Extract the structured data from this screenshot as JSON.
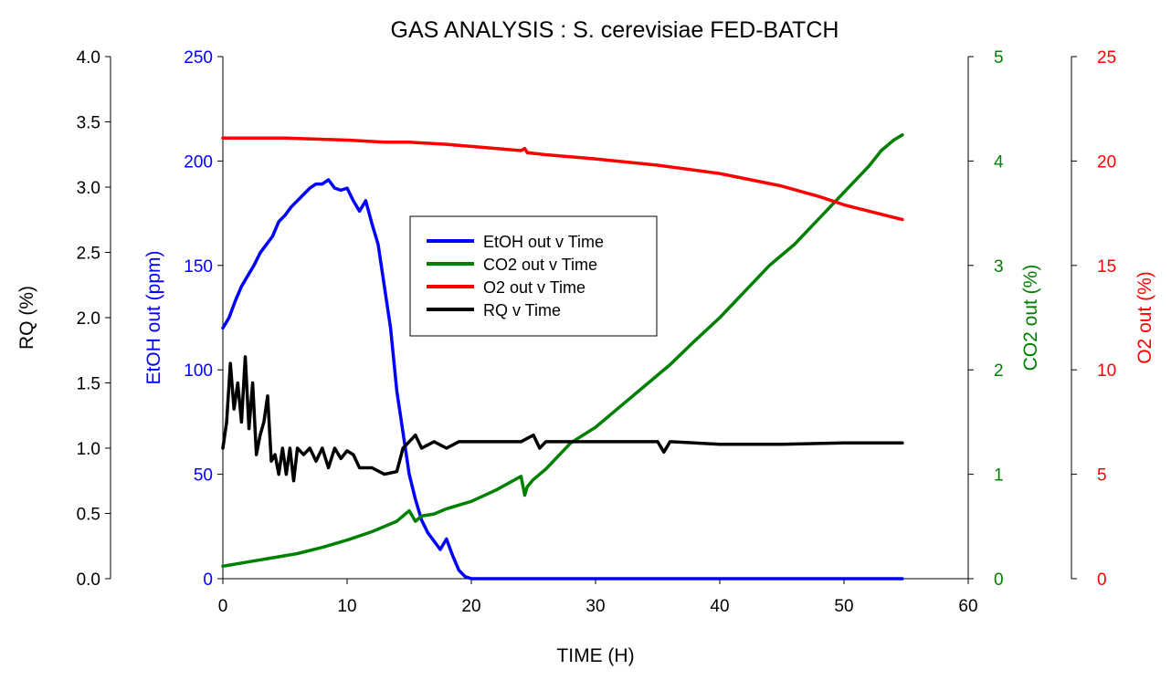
{
  "chart_data": {
    "type": "line",
    "title": "GAS  ANALYSIS : S. cerevisiae  FED-BATCH",
    "xlabel": "TIME (H)",
    "xlim": [
      0,
      60
    ],
    "x_ticks": [
      0,
      10,
      20,
      30,
      40,
      50,
      60
    ],
    "grid": false,
    "legend_position": "center",
    "axes": [
      {
        "id": "rq",
        "label": "RQ (%)",
        "color": "#000000",
        "ylim": [
          0,
          4.0
        ],
        "ticks": [
          "0.0",
          "0.5",
          "1.0",
          "1.5",
          "2.0",
          "2.5",
          "3.0",
          "3.5",
          "4.0"
        ]
      },
      {
        "id": "etoh",
        "label": "EtOH out (ppm)",
        "color": "#0000ff",
        "ylim": [
          0,
          250
        ],
        "ticks": [
          "0",
          "50",
          "100",
          "150",
          "200",
          "250"
        ]
      },
      {
        "id": "co2",
        "label": "CO2 out (%)",
        "color": "#008000",
        "ylim": [
          0,
          5
        ],
        "ticks": [
          "0",
          "1",
          "2",
          "3",
          "4",
          "5"
        ]
      },
      {
        "id": "o2",
        "label": "O2 out (%)",
        "color": "#ff0000",
        "ylim": [
          0,
          25
        ],
        "ticks": [
          "0",
          "5",
          "10",
          "15",
          "20",
          "25"
        ]
      }
    ],
    "series": [
      {
        "name": "EtOH out v Time",
        "axis": "etoh",
        "color": "#0000ff",
        "x": [
          0,
          0.5,
          1,
          1.5,
          2,
          2.5,
          3,
          3.5,
          4,
          4.5,
          5,
          5.5,
          6,
          6.5,
          7,
          7.5,
          8,
          8.5,
          9,
          9.5,
          10,
          10.5,
          11,
          11.5,
          12,
          12.5,
          13,
          13.5,
          14,
          14.5,
          15,
          15.5,
          16,
          16.5,
          17,
          17.5,
          18,
          18.5,
          19,
          19.5,
          20,
          25,
          30,
          35,
          40,
          45,
          50,
          54.7
        ],
        "y": [
          120,
          125,
          133,
          140,
          145,
          150,
          156,
          160,
          164,
          171,
          174,
          178,
          181,
          184,
          187,
          189,
          189,
          191,
          187,
          186,
          187,
          181,
          176,
          181,
          170,
          160,
          140,
          120,
          90,
          70,
          50,
          38,
          28,
          22,
          18,
          14,
          19,
          11,
          4,
          1,
          0,
          0,
          0,
          0,
          0,
          0,
          0,
          0
        ]
      },
      {
        "name": "CO2 out v Time",
        "axis": "co2",
        "color": "#008000",
        "x": [
          0,
          2,
          4,
          6,
          8,
          10,
          12,
          14,
          15,
          15.5,
          16,
          17,
          18,
          20,
          22,
          24,
          24.3,
          24.5,
          25,
          26,
          28,
          30,
          32,
          34,
          36,
          38,
          40,
          42,
          44,
          46,
          48,
          50,
          52,
          53,
          54,
          54.7
        ],
        "y": [
          0.12,
          0.16,
          0.2,
          0.24,
          0.3,
          0.37,
          0.45,
          0.55,
          0.65,
          0.55,
          0.6,
          0.62,
          0.67,
          0.74,
          0.85,
          0.98,
          0.8,
          0.88,
          0.95,
          1.05,
          1.3,
          1.45,
          1.65,
          1.85,
          2.05,
          2.28,
          2.5,
          2.75,
          3.0,
          3.2,
          3.45,
          3.7,
          3.95,
          4.1,
          4.2,
          4.25
        ]
      },
      {
        "name": "O2 out v Time",
        "axis": "o2",
        "color": "#ff0000",
        "x": [
          0,
          5,
          10,
          13,
          15,
          18,
          20,
          24,
          24.3,
          24.5,
          26,
          30,
          35,
          40,
          45,
          48,
          50,
          52,
          54,
          54.7
        ],
        "y": [
          21.1,
          21.1,
          21.0,
          20.9,
          20.9,
          20.8,
          20.7,
          20.5,
          20.6,
          20.4,
          20.3,
          20.1,
          19.8,
          19.4,
          18.8,
          18.3,
          17.9,
          17.6,
          17.3,
          17.2
        ]
      },
      {
        "name": "RQ v Time",
        "axis": "rq",
        "color": "#000000",
        "x": [
          0,
          0.3,
          0.6,
          0.9,
          1.2,
          1.5,
          1.8,
          2.1,
          2.4,
          2.7,
          3,
          3.3,
          3.6,
          3.9,
          4.2,
          4.5,
          4.8,
          5.1,
          5.4,
          5.7,
          6,
          6.5,
          7,
          7.5,
          8,
          8.5,
          9,
          9.5,
          10,
          10.5,
          11,
          12,
          13,
          14,
          14.5,
          15,
          15.5,
          16,
          17,
          18,
          19,
          20,
          22,
          24,
          25,
          25.5,
          26,
          28,
          30,
          32,
          34,
          35,
          35.5,
          36,
          40,
          45,
          50,
          54.7
        ],
        "y": [
          1.0,
          1.2,
          1.65,
          1.3,
          1.5,
          1.2,
          1.7,
          1.15,
          1.5,
          0.95,
          1.1,
          1.2,
          1.4,
          0.9,
          0.95,
          0.8,
          1.0,
          0.8,
          1.0,
          0.75,
          1.0,
          0.95,
          1.0,
          0.9,
          1.0,
          0.85,
          1.0,
          0.92,
          0.98,
          0.95,
          0.85,
          0.85,
          0.8,
          0.82,
          1.0,
          1.05,
          1.1,
          1.0,
          1.05,
          1.0,
          1.05,
          1.05,
          1.05,
          1.05,
          1.1,
          1.0,
          1.05,
          1.05,
          1.05,
          1.05,
          1.05,
          1.05,
          0.97,
          1.05,
          1.03,
          1.03,
          1.04,
          1.04
        ]
      }
    ]
  }
}
